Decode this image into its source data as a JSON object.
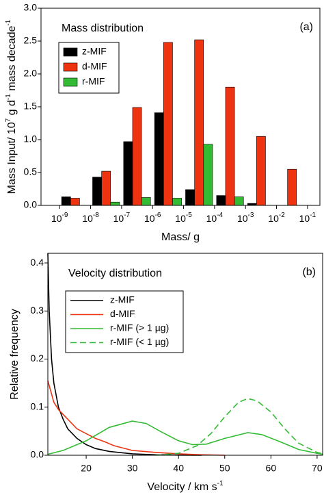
{
  "chart_data": [
    {
      "type": "bar",
      "title": "Mass distribution",
      "annotation": "(a)",
      "xlabel": "Mass/ g",
      "ylabel": [
        "Mass Input/ 10",
        "7",
        " g d",
        "-1",
        " mass decade",
        "-1"
      ],
      "x": [
        -8.5,
        -7.5,
        -6.5,
        -5.5,
        -4.5,
        -3.5,
        -2.5,
        -1.5
      ],
      "series": [
        {
          "name": "z-MIF",
          "color": "#000000",
          "values": [
            0.13,
            0.43,
            0.97,
            1.41,
            0.24,
            0.15,
            0.03,
            0
          ]
        },
        {
          "name": "d-MIF",
          "color": "#ee3311",
          "values": [
            0.11,
            0.52,
            1.49,
            2.48,
            2.52,
            1.8,
            1.05,
            0.55
          ]
        },
        {
          "name": "r-MIF",
          "color": "#33bb33",
          "values": [
            0,
            0.05,
            0.12,
            0.11,
            0.93,
            0.13,
            0,
            0
          ]
        }
      ],
      "xlim": [
        -9.6,
        -0.6
      ],
      "xticks": [
        {
          "value": -9,
          "label": "10-9"
        },
        {
          "value": -8,
          "label": "10-8"
        },
        {
          "value": -7,
          "label": "10-7"
        },
        {
          "value": -6,
          "label": "10-6"
        },
        {
          "value": -5,
          "label": "10-5"
        },
        {
          "value": -4,
          "label": "10-4"
        },
        {
          "value": -3,
          "label": "10-3"
        },
        {
          "value": -2,
          "label": "10-2"
        },
        {
          "value": -1,
          "label": "10-1"
        }
      ],
      "ylim": [
        0,
        3
      ],
      "yticks": [
        {
          "value": 0,
          "label": "0.0"
        },
        0.5,
        {
          "value": 1,
          "label": "1.0"
        },
        1.5,
        {
          "value": 2,
          "label": "2.0"
        },
        2.5,
        {
          "value": 3,
          "label": "3.0"
        }
      ],
      "legend": "upper left"
    },
    {
      "type": "line",
      "title": "Velocity distribution",
      "annotation": "(b)",
      "xlabel": [
        "Velocity / km s",
        "-1"
      ],
      "ylabel": [
        "Relative frequency"
      ],
      "series": [
        {
          "name": "z-MIF",
          "color": "#000000",
          "linestyle": "solid",
          "x": [
            11.7,
            12,
            12.5,
            13,
            14,
            15,
            16,
            18,
            20,
            22,
            25,
            30,
            35,
            40,
            45
          ],
          "values": [
            0.42,
            0.3,
            0.2,
            0.15,
            0.1,
            0.075,
            0.055,
            0.035,
            0.022,
            0.014,
            0.008,
            0.003,
            0.001,
            0.0003,
            0
          ]
        },
        {
          "name": "d-MIF",
          "color": "#ee3311",
          "linestyle": "solid",
          "x": [
            11.7,
            13,
            14,
            15,
            16,
            18,
            20,
            22,
            24,
            26,
            28,
            30,
            35,
            40,
            45,
            50
          ],
          "values": [
            0.155,
            0.11,
            0.095,
            0.085,
            0.075,
            0.055,
            0.045,
            0.035,
            0.028,
            0.02,
            0.015,
            0.01,
            0.006,
            0.003,
            0.001,
            0
          ]
        },
        {
          "name": "r-MIF (> 1 µg)",
          "color": "#33bb33",
          "linestyle": "solid",
          "x": [
            11.7,
            15,
            20,
            25,
            30,
            33,
            36,
            40,
            43,
            46,
            50,
            55,
            58,
            62,
            66,
            70,
            71.2
          ],
          "values": [
            0.002,
            0.01,
            0.03,
            0.058,
            0.071,
            0.066,
            0.05,
            0.03,
            0.022,
            0.023,
            0.035,
            0.047,
            0.043,
            0.028,
            0.012,
            0.004,
            0.002
          ]
        },
        {
          "name": "r-MIF (< 1 µg)",
          "color": "#33bb33",
          "linestyle": "dashed",
          "x": [
            35,
            40,
            44,
            47,
            50,
            53,
            55,
            57,
            60,
            63,
            66,
            70,
            71.2
          ],
          "values": [
            0,
            0.004,
            0.02,
            0.045,
            0.08,
            0.11,
            0.118,
            0.113,
            0.09,
            0.055,
            0.025,
            0.006,
            0.003
          ]
        }
      ],
      "xlim": [
        11.7,
        71.2
      ],
      "xticks": [
        20,
        30,
        40,
        50,
        60,
        70
      ],
      "ylim": [
        0,
        0.42
      ],
      "yticks": [
        {
          "value": 0,
          "label": "0.0"
        },
        0.1,
        0.2,
        0.3,
        0.4
      ],
      "legend": "upper left"
    }
  ]
}
